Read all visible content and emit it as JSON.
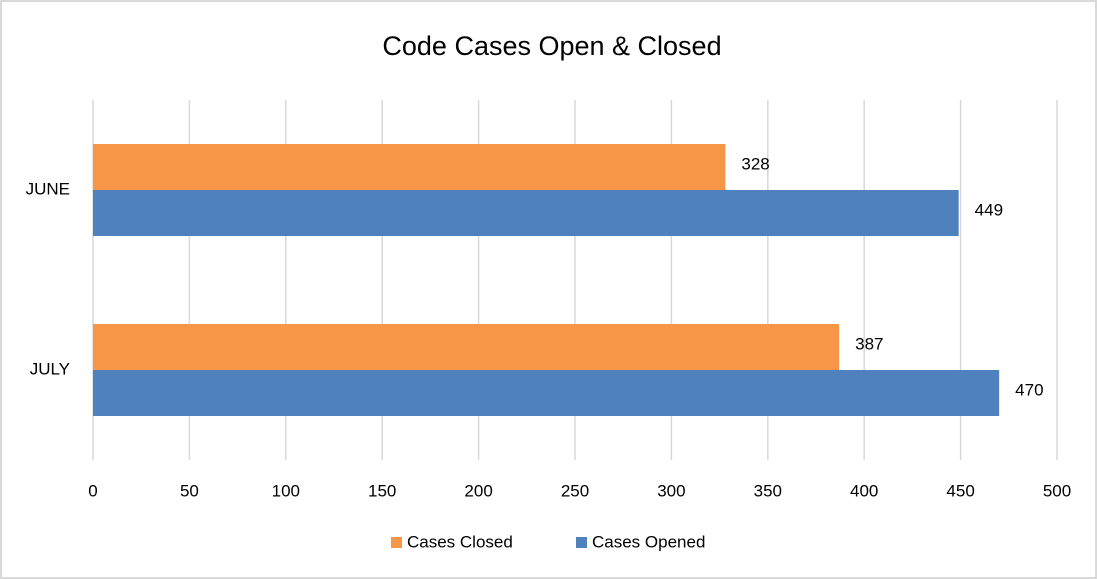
{
  "chart_data": {
    "type": "hbar",
    "title": "Code Cases Open & Closed",
    "categories": [
      "JUNE",
      "JULY"
    ],
    "series": [
      {
        "name": "Cases Closed",
        "color": "#f79646",
        "values": [
          328,
          387
        ]
      },
      {
        "name": "Cases Opened",
        "color": "#4f81bd",
        "values": [
          449,
          470
        ]
      }
    ],
    "xlim": [
      0,
      500
    ],
    "xticks": [
      0,
      50,
      100,
      150,
      200,
      250,
      300,
      350,
      400,
      450,
      500
    ],
    "grid": true,
    "legend": "bottom"
  }
}
